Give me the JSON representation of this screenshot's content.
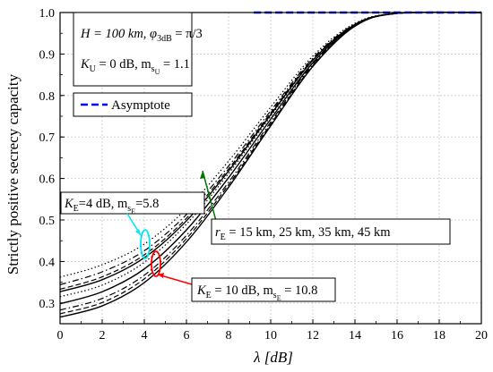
{
  "chart_data": {
    "type": "line",
    "xlabel": "λ [dB]",
    "ylabel": "Strictly positive secrecy capacity",
    "xlim": [
      0,
      20
    ],
    "ylim": [
      0.25,
      1.0
    ],
    "x_ticks": [
      "0",
      "2",
      "4",
      "6",
      "8",
      "10",
      "12",
      "14",
      "16",
      "18",
      "20"
    ],
    "y_ticks": [
      "0.3",
      "0.4",
      "0.5",
      "0.6",
      "0.7",
      "0.8",
      "0.9",
      "1.0"
    ],
    "grid": true,
    "legend": {
      "placement": "upper-left",
      "entries": [
        {
          "label": "Asymptote",
          "style": "dashed",
          "color": "#0000ff"
        }
      ]
    },
    "parameters_box": {
      "line1_h": "H = 100 km, φ",
      "line1_h_sub": "3dB",
      "line1_tail": " = π/3",
      "line2_k": "K",
      "line2_k_sub": "U",
      "line2_mid": " = 0 dB, m",
      "line2_m_sub": "s",
      "line2_m_subsub": "U",
      "line2_tail": " = 1.1"
    },
    "annotations": [
      {
        "id": "ke4",
        "k": "K",
        "k_sub": "E",
        "mid": "=4 dB, m",
        "m_sub": "s",
        "m_subsub": "E",
        "tail": "=5.8",
        "color": "#00e5ee"
      },
      {
        "id": "ke10",
        "k": "K",
        "k_sub": "E",
        "mid": " = 10 dB, m",
        "m_sub": "s",
        "m_subsub": "E",
        "tail": " = 10.8",
        "color": "#ff0000"
      },
      {
        "id": "re",
        "r": "r",
        "r_sub": "E",
        "tail": " = 15 km, 25 km, 35 km, 45 km",
        "color": "#007700"
      }
    ],
    "asymptote": {
      "y": 1.0,
      "x_range": [
        9.2,
        20
      ]
    },
    "series": [
      {
        "group": "K_E=4 dB",
        "style": "dotted",
        "x": [
          0,
          2,
          4,
          6,
          8,
          10,
          12,
          14,
          16,
          20
        ],
        "y": [
          0.362,
          0.392,
          0.442,
          0.527,
          0.642,
          0.772,
          0.895,
          0.974,
          0.998,
          1.0
        ]
      },
      {
        "group": "K_E=4 dB",
        "style": "dashdot",
        "x": [
          0,
          2,
          4,
          6,
          8,
          10,
          12,
          14,
          16,
          20
        ],
        "y": [
          0.344,
          0.375,
          0.426,
          0.513,
          0.63,
          0.763,
          0.89,
          0.972,
          0.998,
          1.0
        ]
      },
      {
        "group": "K_E=4 dB",
        "style": "dashed",
        "x": [
          0,
          2,
          4,
          6,
          8,
          10,
          12,
          14,
          16,
          20
        ],
        "y": [
          0.333,
          0.363,
          0.416,
          0.504,
          0.623,
          0.758,
          0.887,
          0.971,
          0.998,
          1.0
        ]
      },
      {
        "group": "K_E=4 dB",
        "style": "solid",
        "x": [
          0,
          2,
          4,
          6,
          8,
          10,
          12,
          14,
          16,
          20
        ],
        "y": [
          0.327,
          0.356,
          0.409,
          0.498,
          0.618,
          0.754,
          0.885,
          0.971,
          0.998,
          1.0
        ]
      },
      {
        "group": "K_E=10 dB",
        "style": "dotted",
        "x": [
          0,
          2,
          4,
          6,
          8,
          10,
          12,
          14,
          16,
          20
        ],
        "y": [
          0.315,
          0.343,
          0.398,
          0.49,
          0.612,
          0.75,
          0.884,
          0.97,
          0.998,
          1.0
        ]
      },
      {
        "group": "K_E=10 dB",
        "style": "solid",
        "x": [
          0,
          2,
          4,
          6,
          8,
          10,
          12,
          14,
          16,
          20
        ],
        "y": [
          0.298,
          0.327,
          0.382,
          0.476,
          0.602,
          0.743,
          0.879,
          0.969,
          0.998,
          1.0
        ]
      },
      {
        "group": "K_E=10 dB",
        "style": "dashdot",
        "x": [
          0,
          2,
          4,
          6,
          8,
          10,
          12,
          14,
          16,
          20
        ],
        "y": [
          0.283,
          0.311,
          0.367,
          0.463,
          0.591,
          0.736,
          0.875,
          0.968,
          0.998,
          1.0
        ]
      },
      {
        "group": "K_E=10 dB",
        "style": "dashed",
        "x": [
          0,
          2,
          4,
          6,
          8,
          10,
          12,
          14,
          16,
          20
        ],
        "y": [
          0.274,
          0.301,
          0.358,
          0.455,
          0.585,
          0.731,
          0.872,
          0.968,
          0.998,
          1.0
        ]
      },
      {
        "group": "K_E=10 dB",
        "style": "solid",
        "x": [
          0,
          2,
          4,
          6,
          8,
          10,
          12,
          14,
          16,
          20
        ],
        "y": [
          0.266,
          0.293,
          0.349,
          0.447,
          0.579,
          0.727,
          0.87,
          0.967,
          0.998,
          1.0
        ]
      }
    ]
  }
}
